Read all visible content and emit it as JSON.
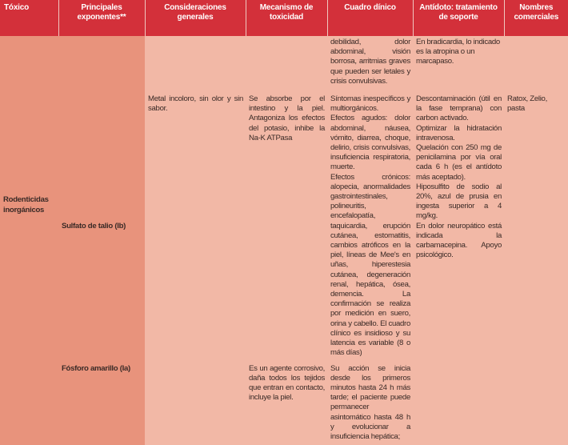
{
  "header": {
    "columns": [
      "Tóxico",
      "Principales exponentes**",
      "Consideraciones generales",
      "Mecanismo de toxicidad",
      "Cuadro dínico",
      "Antídoto: tratamiento de soporte",
      "Nombres comerciales"
    ]
  },
  "continued_row": {
    "cuadro": "debilidad, dolor abdominal, visión borrosa, arritmias graves que pueden ser letales y crisis convulsivas.",
    "antidoto": "En bradicardia, lo indicado es la atropina o un marcapaso."
  },
  "group": {
    "toxico": "Rodenticidas inorgánicos"
  },
  "rows": [
    {
      "exponente": "Sulfato de talio (Ib)",
      "consideraciones": "Metal incoloro, sin olor y sin sabor.",
      "mecanismo": "Se absorbe por el intestino y la piel. Antagoniza los efectos del potasio, inhibe la Na-K ATPasa",
      "cuadro": [
        "Síntomas inespecíficos y multiorgánicos.",
        "Efectos agudos: dolor abdominal, náusea, vómito, diarrea, choque, delirio, crisis convulsivas, insuficiencia respiratoria, muerte.",
        "Efectos crónicos: alopecia, anormalidades gastrointestinales, polineuritis, encefalopatía, taquicardia, erupción cutánea, estomatitis, cambios atróficos en la piel, líneas de Mee's en uñas, hiperestesia cutánea, degeneración renal, hepática, ósea, demencia. La confirmación se realiza por medición en suero, orina y cabello. El cuadro clínico es insidioso y su latencia es variable (8 o más días)"
      ],
      "antidoto": [
        "Descontaminación (útil en la fase temprana) con carbon activado.",
        "Optimizar la hidratación intravenosa.",
        "Quelación con 250 mg de penicilamina por vía oral cada 6 h (es el antídoto más aceptado).",
        "Hiposulfito de sodio al 20%, azul de prusia en ingesta superior a 4 mg/kg.",
        "En dolor neuropático está indicada la carbamacepina. Apoyo psicológico."
      ],
      "comerciales": "Ratox, Zelio, pasta"
    },
    {
      "exponente": "Fósforo amarillo (Ia)",
      "mecanismo": "Es un agente corrosivo, daña todos los tejidos que entran en contacto, incluye la piel.",
      "cuadro": "Su acción se inicia desde los primeros minutos hasta 24 h más tarde; el paciente puede permanecer asintomático hasta 48 h y evolucionar a insuficiencia hepática;"
    }
  ]
}
